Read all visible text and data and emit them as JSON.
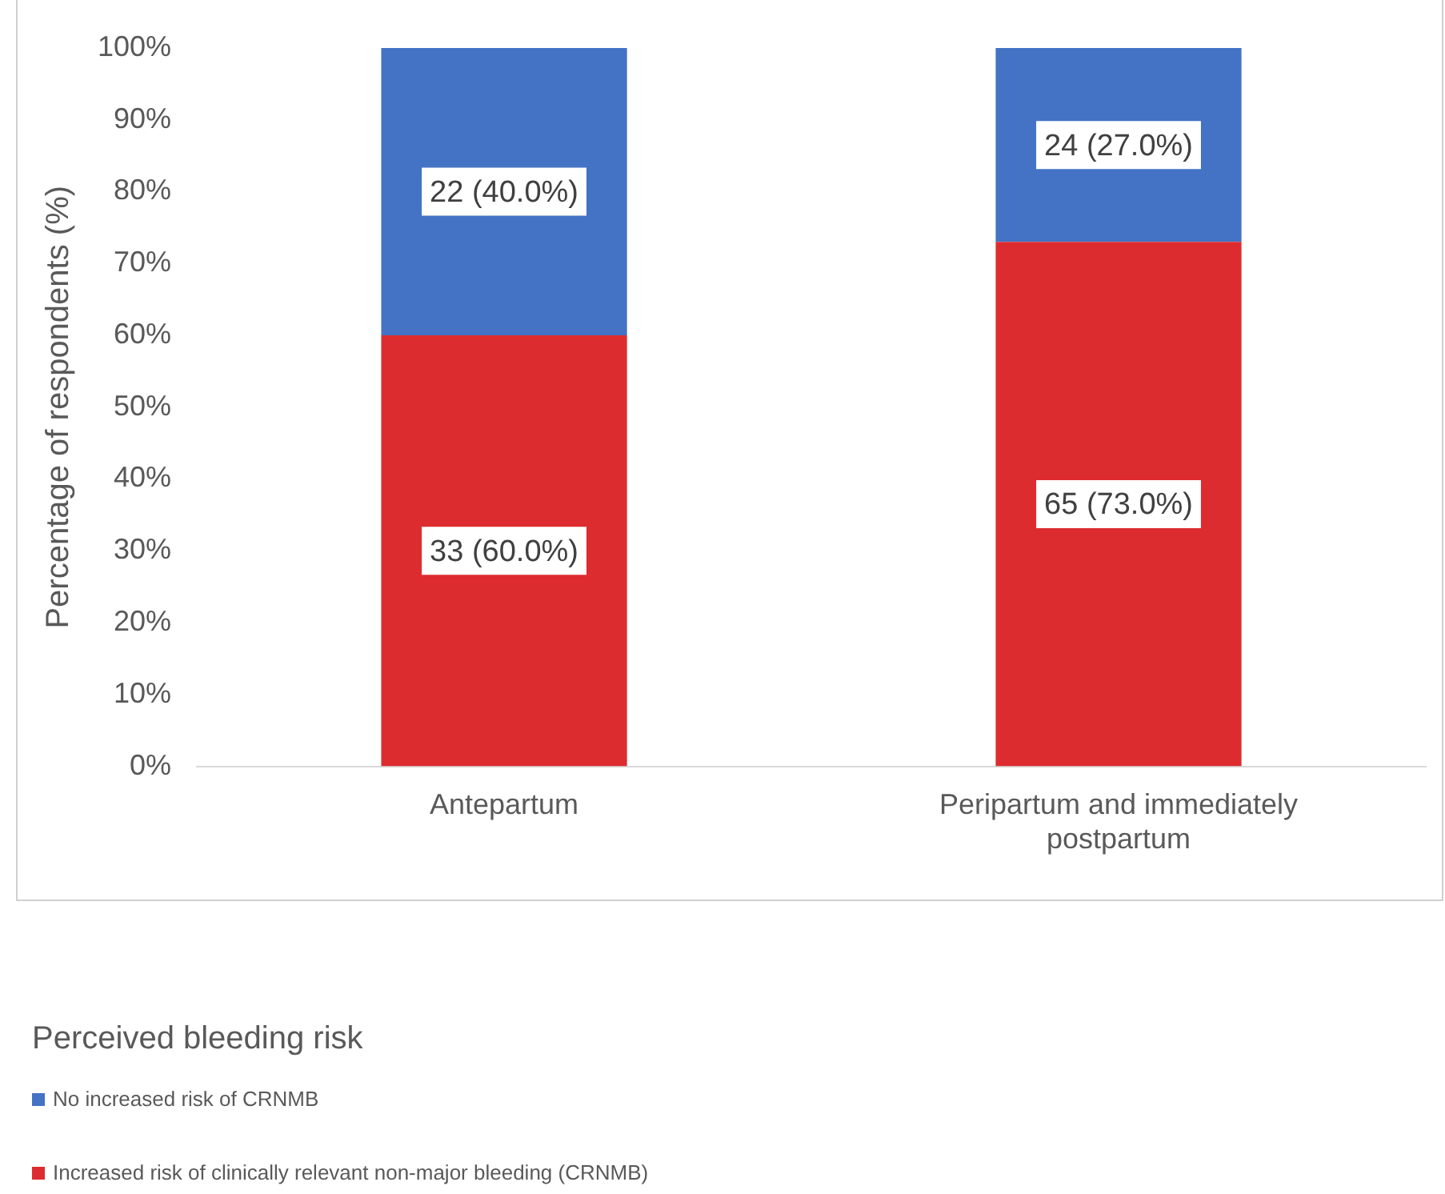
{
  "chart_data": {
    "type": "bar",
    "stacked": true,
    "ylabel": "Percentage of respondents (%)",
    "legend_title": "Perceived bleeding risk",
    "legend": "bottom",
    "categories": [
      "Antepartum",
      "Peripartum and immediately postpartum"
    ],
    "ylim": [
      0,
      100
    ],
    "yticks": [
      {
        "value": 0,
        "label": "0%"
      },
      {
        "value": 10,
        "label": "10%"
      },
      {
        "value": 20,
        "label": "20%"
      },
      {
        "value": 30,
        "label": "30%"
      },
      {
        "value": 40,
        "label": "40%"
      },
      {
        "value": 50,
        "label": "50%"
      },
      {
        "value": 60,
        "label": "60%"
      },
      {
        "value": 70,
        "label": "70%"
      },
      {
        "value": 80,
        "label": "80%"
      },
      {
        "value": 90,
        "label": "90%"
      },
      {
        "value": 100,
        "label": "100%"
      }
    ],
    "grid": false,
    "series": [
      {
        "name": "Increased risk of clinically relevant non-major bleeding (CRNMB)",
        "color": "#dd2c2f",
        "values": [
          60,
          73
        ],
        "value_labels": [
          "33 (60.0%)",
          "65 (73.0%)"
        ]
      },
      {
        "name": "No increased risk of CRNMB",
        "color": "#4472c4",
        "values": [
          40,
          27
        ],
        "value_labels": [
          "22 (40.0%)",
          "24 (27.0%)"
        ]
      }
    ]
  }
}
